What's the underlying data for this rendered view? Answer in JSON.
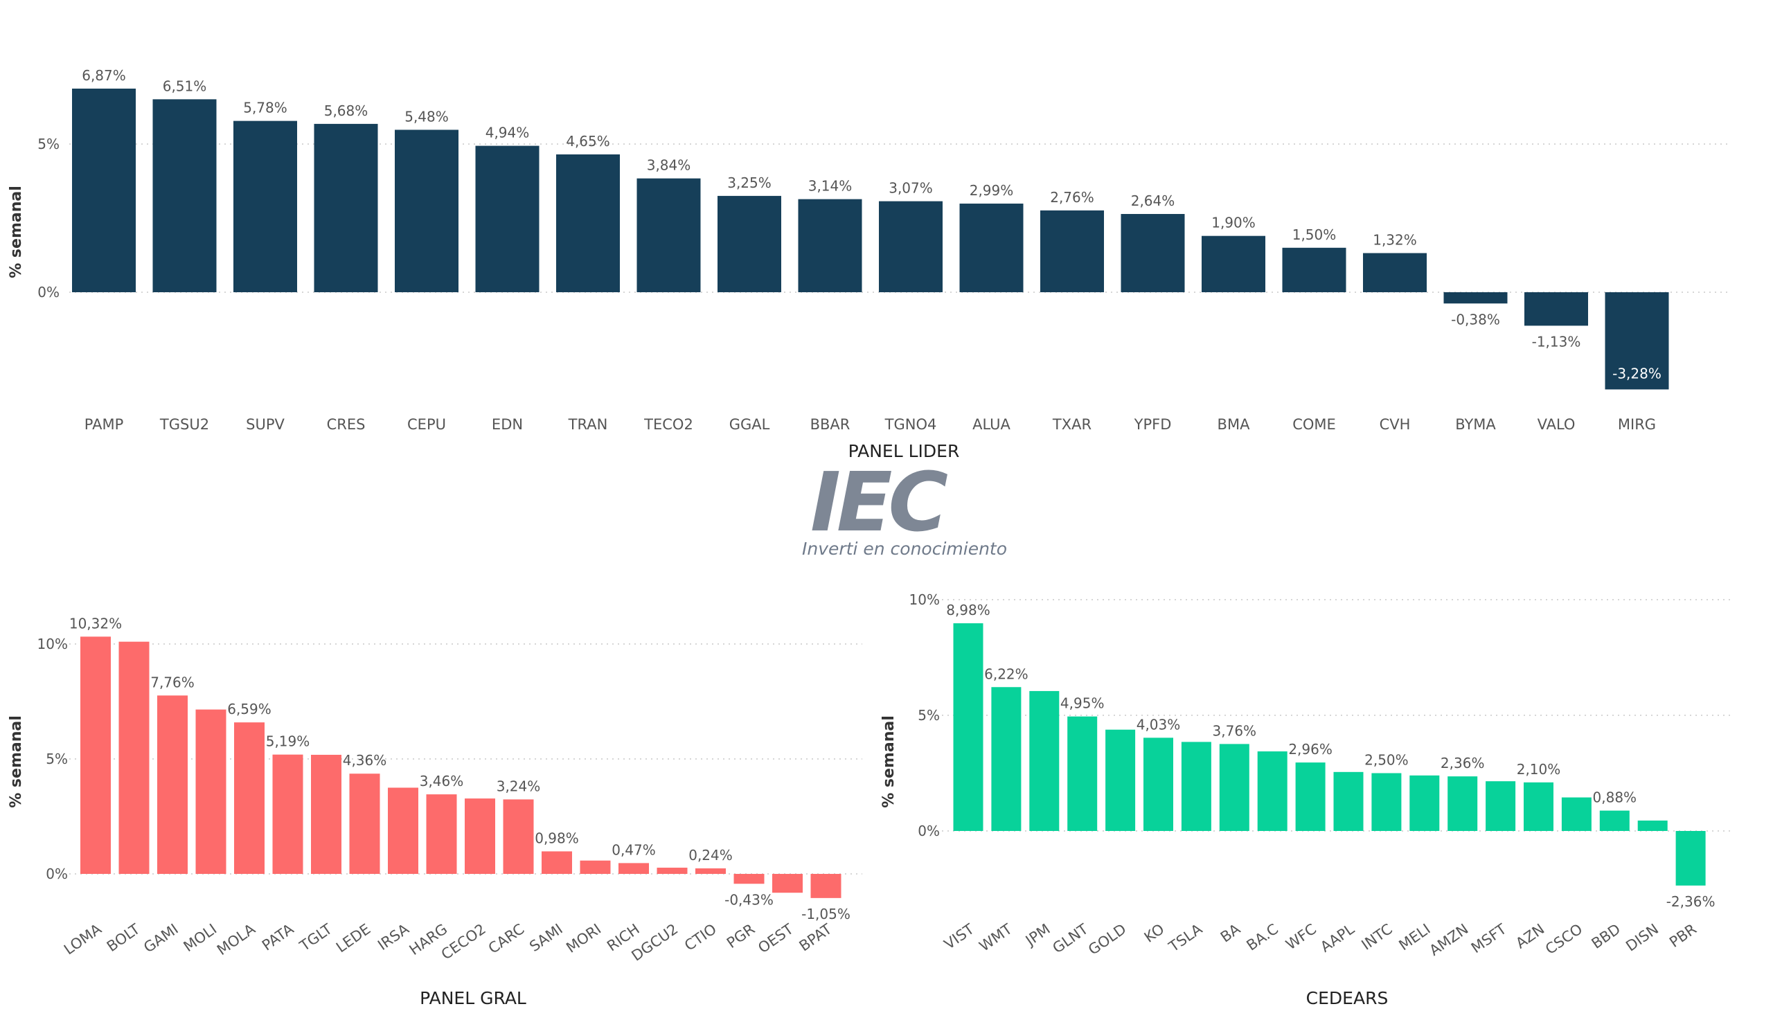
{
  "logo": {
    "mark": "IEC",
    "tagline": "Inverti en conocimiento"
  },
  "chart_data": [
    {
      "type": "bar",
      "xlabel": "PANEL LIDER",
      "ylabel": "% semanal",
      "ylim": [
        -3.9,
        7.5
      ],
      "yticks": [
        "5%",
        "0%"
      ],
      "grid": true,
      "color": "#163f59",
      "categories": [
        "PAMP",
        "TGSU2",
        "SUPV",
        "CRES",
        "CEPU",
        "EDN",
        "TRAN",
        "TECO2",
        "GGAL",
        "BBAR",
        "TGNO4",
        "ALUA",
        "TXAR",
        "YPFD",
        "BMA",
        "COME",
        "CVH",
        "BYMA",
        "VALO",
        "MIRG"
      ],
      "values": [
        6.87,
        6.51,
        5.78,
        5.68,
        5.48,
        4.94,
        4.65,
        3.84,
        3.25,
        3.14,
        3.07,
        2.99,
        2.76,
        2.64,
        1.9,
        1.5,
        1.32,
        -0.38,
        -1.13,
        -3.28
      ],
      "labels": [
        "6,87%",
        "6,51%",
        "5,78%",
        "5,68%",
        "5,48%",
        "4,94%",
        "4,65%",
        "3,84%",
        "3,25%",
        "3,14%",
        "3,07%",
        "2,99%",
        "2,76%",
        "2,64%",
        "1,90%",
        "1,50%",
        "1,32%",
        "-0,38%",
        "-1,13%",
        "-3,28%"
      ]
    },
    {
      "type": "bar",
      "xlabel": "PANEL GRAL",
      "ylabel": "% semanal",
      "ylim": [
        -1.5,
        11
      ],
      "yticks": [
        "10%",
        "5%",
        "0%"
      ],
      "grid": true,
      "color": "#fd6b6b",
      "categories": [
        "LOMA",
        "BOLT",
        "GAMI",
        "MOLI",
        "MOLA",
        "PATA",
        "TGLT",
        "LEDE",
        "IRSA",
        "HARG",
        "CECO2",
        "CARC",
        "SAMI",
        "MORI",
        "RICH",
        "DGCU2",
        "CTIO",
        "PGR",
        "OEST",
        "BPAT"
      ],
      "values": [
        10.32,
        10.1,
        7.76,
        7.15,
        6.59,
        5.19,
        5.18,
        4.36,
        3.75,
        3.46,
        3.28,
        3.24,
        0.98,
        0.58,
        0.47,
        0.27,
        0.24,
        -0.43,
        -0.82,
        -1.05
      ],
      "labels": [
        "10,32%",
        "",
        "7,76%",
        "",
        "6,59%",
        "5,19%",
        "",
        "4,36%",
        "",
        "3,46%",
        "",
        "3,24%",
        "0,98%",
        "",
        "0,47%",
        "",
        "0,24%",
        "-0,43%",
        "",
        "-1,05%"
      ]
    },
    {
      "type": "bar",
      "xlabel": "CEDEARS",
      "ylabel": "% semanal",
      "ylim": [
        -2.8,
        10.5
      ],
      "yticks": [
        "10%",
        "5%",
        "0%"
      ],
      "grid": true,
      "color": "#08d29a",
      "categories": [
        "VIST",
        "WMT",
        "JPM",
        "GLNT",
        "GOLD",
        "KO",
        "TSLA",
        "BA",
        "BA.C",
        "WFC",
        "AAPL",
        "INTC",
        "MELI",
        "AMZN",
        "MSFT",
        "AZN",
        "CSCO",
        "BBD",
        "DISN",
        "PBR"
      ],
      "values": [
        8.98,
        6.22,
        6.05,
        4.95,
        4.38,
        4.03,
        3.85,
        3.76,
        3.44,
        2.96,
        2.55,
        2.5,
        2.4,
        2.36,
        2.15,
        2.1,
        1.45,
        0.88,
        0.45,
        -2.36
      ],
      "labels": [
        "8,98%",
        "6,22%",
        "",
        "4,95%",
        "",
        "4,03%",
        "",
        "3,76%",
        "",
        "2,96%",
        "",
        "2,50%",
        "",
        "2,36%",
        "",
        "2,10%",
        "",
        "0,88%",
        "",
        "-2,36%"
      ]
    }
  ]
}
